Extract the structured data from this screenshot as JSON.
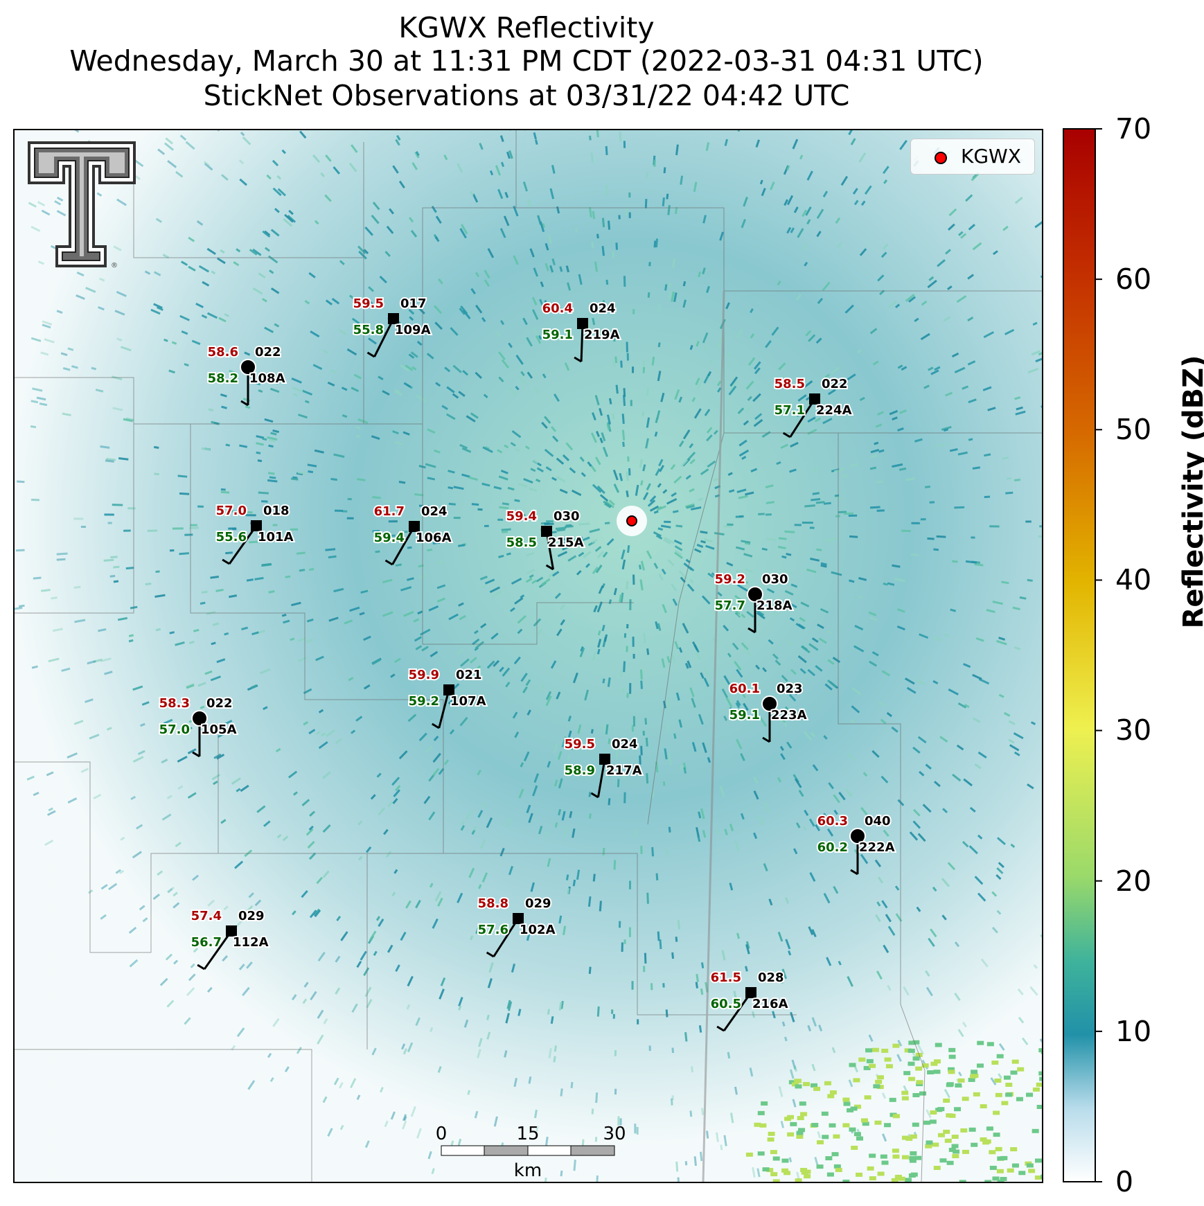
{
  "title": {
    "line1": "KGWX Reflectivity",
    "line2": "Wednesday, March 30 at 11:31 PM CDT (2022-03-31 04:31 UTC)",
    "line3": "StickNet Observations at 03/31/22 04:42 UTC"
  },
  "legend": {
    "label": "KGWX"
  },
  "colorbar": {
    "label": "Reflectivity (dBZ)",
    "ticks": [
      "70",
      "60",
      "50",
      "40",
      "30",
      "20",
      "10",
      "0"
    ]
  },
  "scale_bar": {
    "ticks": [
      "0",
      "15",
      "30"
    ],
    "unit": "km"
  },
  "stations": [
    {
      "id": "109A",
      "temp": "59.5",
      "dew": "55.8",
      "dir": "017",
      "marker": "square"
    },
    {
      "id": "219A",
      "temp": "60.4",
      "dew": "59.1",
      "dir": "024",
      "marker": "square"
    },
    {
      "id": "108A",
      "temp": "58.6",
      "dew": "58.2",
      "dir": "022",
      "marker": "circle"
    },
    {
      "id": "224A",
      "temp": "58.5",
      "dew": "57.1",
      "dir": "022",
      "marker": "square"
    },
    {
      "id": "101A",
      "temp": "57.0",
      "dew": "55.6",
      "dir": "018",
      "marker": "square"
    },
    {
      "id": "106A",
      "temp": "61.7",
      "dew": "59.4",
      "dir": "024",
      "marker": "square"
    },
    {
      "id": "215A",
      "temp": "59.4",
      "dew": "58.5",
      "dir": "030",
      "marker": "square"
    },
    {
      "id": "218A",
      "temp": "59.2",
      "dew": "57.7",
      "dir": "030",
      "marker": "circle"
    },
    {
      "id": "107A",
      "temp": "59.9",
      "dew": "59.2",
      "dir": "021",
      "marker": "square"
    },
    {
      "id": "223A",
      "temp": "60.1",
      "dew": "59.1",
      "dir": "023",
      "marker": "circle"
    },
    {
      "id": "105A",
      "temp": "58.3",
      "dew": "57.0",
      "dir": "022",
      "marker": "circle"
    },
    {
      "id": "217A",
      "temp": "59.5",
      "dew": "58.9",
      "dir": "024",
      "marker": "square"
    },
    {
      "id": "222A",
      "temp": "60.3",
      "dew": "60.2",
      "dir": "040",
      "marker": "circle"
    },
    {
      "id": "102A",
      "temp": "58.8",
      "dew": "57.6",
      "dir": "029",
      "marker": "square"
    },
    {
      "id": "112A",
      "temp": "57.4",
      "dew": "56.7",
      "dir": "029",
      "marker": "square"
    },
    {
      "id": "216A",
      "temp": "61.5",
      "dew": "60.5",
      "dir": "028",
      "marker": "square"
    }
  ],
  "colors": {
    "temp": "#aa0000",
    "dew": "#006400",
    "radar_site": "#ff0000",
    "echo_main": "#2a9aa8",
    "echo_light": "#5fc3b4",
    "echo_strong": "#b8e05a"
  },
  "icons": {
    "logo": "double-t-logo-icon",
    "radar": "radar-site-icon"
  }
}
